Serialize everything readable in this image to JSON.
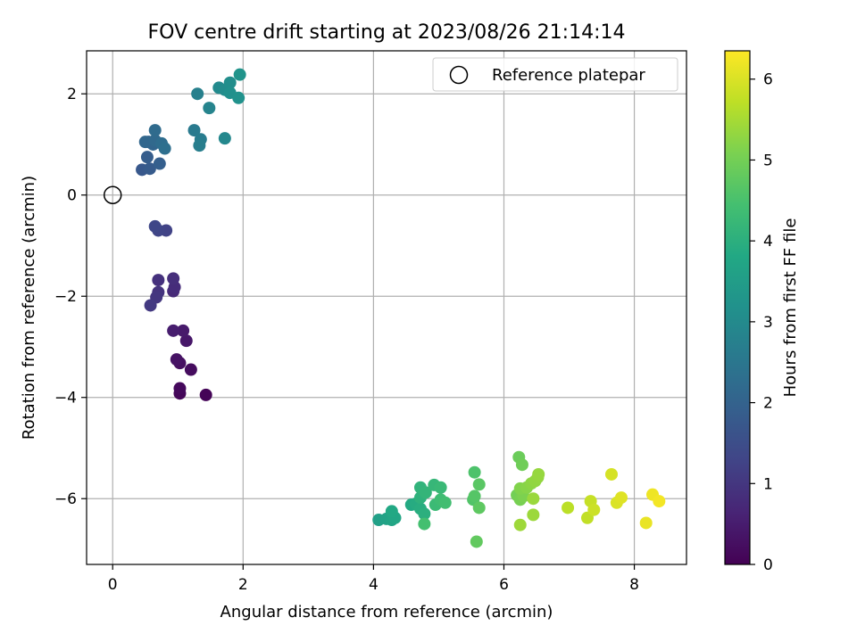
{
  "chart_data": {
    "type": "scatter",
    "title": "FOV centre drift starting at 2023/08/26 21:14:14",
    "xlabel": "Angular distance from reference (arcmin)",
    "ylabel": "Rotation from reference (arcmin)",
    "xlim": [
      -0.4,
      8.8
    ],
    "ylim": [
      -7.3,
      2.85
    ],
    "xticks": [
      0,
      2,
      4,
      6,
      8
    ],
    "xtick_labels": [
      "0",
      "2",
      "4",
      "6",
      "8"
    ],
    "yticks": [
      2,
      0,
      -2,
      -4,
      -6
    ],
    "ytick_labels": [
      "2",
      "0",
      "−2",
      "−4",
      "−6"
    ],
    "grid": true,
    "legend": {
      "position": "top-right",
      "entries": [
        {
          "label": "Reference platepar",
          "marker": "open-circle"
        }
      ]
    },
    "reference_point": {
      "x": 0,
      "y": 0
    },
    "colorbar": {
      "label": "Hours from first FF file",
      "colormap": "viridis",
      "range": [
        0,
        6.35
      ],
      "ticks": [
        0,
        1,
        2,
        3,
        4,
        5,
        6
      ],
      "tick_labels": [
        "0",
        "1",
        "2",
        "3",
        "4",
        "5",
        "6"
      ]
    },
    "points": [
      {
        "x": 1.43,
        "y": -3.95,
        "c": 0.05
      },
      {
        "x": 1.03,
        "y": -3.92,
        "c": 0.1
      },
      {
        "x": 1.03,
        "y": -3.82,
        "c": 0.15
      },
      {
        "x": 1.2,
        "y": -3.45,
        "c": 0.2
      },
      {
        "x": 1.03,
        "y": -3.32,
        "c": 0.25
      },
      {
        "x": 0.98,
        "y": -3.25,
        "c": 0.3
      },
      {
        "x": 1.13,
        "y": -2.88,
        "c": 0.4
      },
      {
        "x": 1.08,
        "y": -2.68,
        "c": 0.45
      },
      {
        "x": 0.93,
        "y": -2.68,
        "c": 0.5
      },
      {
        "x": 0.93,
        "y": -1.9,
        "c": 0.75
      },
      {
        "x": 0.95,
        "y": -1.82,
        "c": 0.8
      },
      {
        "x": 0.93,
        "y": -1.65,
        "c": 0.85
      },
      {
        "x": 0.7,
        "y": -1.68,
        "c": 0.9
      },
      {
        "x": 0.7,
        "y": -1.92,
        "c": 0.95
      },
      {
        "x": 0.67,
        "y": -2.02,
        "c": 1.0
      },
      {
        "x": 0.58,
        "y": -2.18,
        "c": 1.05
      },
      {
        "x": 0.82,
        "y": -0.7,
        "c": 1.25
      },
      {
        "x": 0.7,
        "y": -0.7,
        "c": 1.3
      },
      {
        "x": 0.65,
        "y": -0.62,
        "c": 1.35
      },
      {
        "x": 0.45,
        "y": 0.5,
        "c": 1.75
      },
      {
        "x": 0.57,
        "y": 0.52,
        "c": 1.8
      },
      {
        "x": 0.53,
        "y": 0.75,
        "c": 1.85
      },
      {
        "x": 0.72,
        "y": 0.62,
        "c": 1.9
      },
      {
        "x": 0.55,
        "y": 1.05,
        "c": 2.0
      },
      {
        "x": 0.62,
        "y": 1.0,
        "c": 2.05
      },
      {
        "x": 0.5,
        "y": 1.05,
        "c": 2.1
      },
      {
        "x": 0.65,
        "y": 1.08,
        "c": 2.15
      },
      {
        "x": 0.65,
        "y": 1.28,
        "c": 2.2
      },
      {
        "x": 0.75,
        "y": 1.02,
        "c": 2.25
      },
      {
        "x": 0.8,
        "y": 0.92,
        "c": 2.3
      },
      {
        "x": 1.25,
        "y": 1.28,
        "c": 2.6
      },
      {
        "x": 1.35,
        "y": 1.1,
        "c": 2.65
      },
      {
        "x": 1.33,
        "y": 0.98,
        "c": 2.7
      },
      {
        "x": 1.3,
        "y": 2.0,
        "c": 2.75
      },
      {
        "x": 1.48,
        "y": 1.72,
        "c": 2.85
      },
      {
        "x": 1.72,
        "y": 1.12,
        "c": 2.95
      },
      {
        "x": 1.63,
        "y": 2.12,
        "c": 3.0
      },
      {
        "x": 1.72,
        "y": 2.08,
        "c": 3.05
      },
      {
        "x": 1.8,
        "y": 2.22,
        "c": 3.1
      },
      {
        "x": 1.8,
        "y": 2.02,
        "c": 3.15
      },
      {
        "x": 1.93,
        "y": 1.92,
        "c": 3.2
      },
      {
        "x": 1.95,
        "y": 2.38,
        "c": 3.25
      },
      {
        "x": 4.08,
        "y": -6.42,
        "c": 3.6
      },
      {
        "x": 4.2,
        "y": -6.4,
        "c": 3.65
      },
      {
        "x": 4.28,
        "y": -6.42,
        "c": 3.7
      },
      {
        "x": 4.33,
        "y": -6.38,
        "c": 3.75
      },
      {
        "x": 4.28,
        "y": -6.25,
        "c": 3.8
      },
      {
        "x": 4.58,
        "y": -6.12,
        "c": 3.85
      },
      {
        "x": 4.65,
        "y": -6.1,
        "c": 3.9
      },
      {
        "x": 4.72,
        "y": -6.2,
        "c": 3.95
      },
      {
        "x": 4.78,
        "y": -6.3,
        "c": 4.0
      },
      {
        "x": 4.72,
        "y": -5.98,
        "c": 4.05
      },
      {
        "x": 4.72,
        "y": -5.78,
        "c": 4.1
      },
      {
        "x": 4.8,
        "y": -5.88,
        "c": 4.15
      },
      {
        "x": 4.93,
        "y": -5.73,
        "c": 4.2
      },
      {
        "x": 5.03,
        "y": -5.78,
        "c": 4.25
      },
      {
        "x": 4.95,
        "y": -6.12,
        "c": 4.3
      },
      {
        "x": 5.03,
        "y": -6.02,
        "c": 4.35
      },
      {
        "x": 5.1,
        "y": -6.08,
        "c": 4.4
      },
      {
        "x": 4.78,
        "y": -6.5,
        "c": 4.45
      },
      {
        "x": 5.55,
        "y": -5.48,
        "c": 4.55
      },
      {
        "x": 5.53,
        "y": -6.02,
        "c": 4.6
      },
      {
        "x": 5.55,
        "y": -5.95,
        "c": 4.65
      },
      {
        "x": 5.62,
        "y": -5.72,
        "c": 4.7
      },
      {
        "x": 5.62,
        "y": -6.18,
        "c": 4.75
      },
      {
        "x": 5.58,
        "y": -6.85,
        "c": 4.8
      },
      {
        "x": 6.23,
        "y": -5.18,
        "c": 4.9
      },
      {
        "x": 6.28,
        "y": -5.33,
        "c": 4.95
      },
      {
        "x": 6.2,
        "y": -5.93,
        "c": 5.0
      },
      {
        "x": 6.25,
        "y": -6.02,
        "c": 5.05
      },
      {
        "x": 6.3,
        "y": -5.95,
        "c": 5.1
      },
      {
        "x": 6.25,
        "y": -5.8,
        "c": 5.15
      },
      {
        "x": 6.35,
        "y": -5.78,
        "c": 5.2
      },
      {
        "x": 6.42,
        "y": -5.7,
        "c": 5.25
      },
      {
        "x": 6.48,
        "y": -5.65,
        "c": 5.3
      },
      {
        "x": 6.52,
        "y": -5.58,
        "c": 5.32
      },
      {
        "x": 6.53,
        "y": -5.52,
        "c": 5.35
      },
      {
        "x": 6.45,
        "y": -6.0,
        "c": 5.38
      },
      {
        "x": 6.45,
        "y": -6.32,
        "c": 5.4
      },
      {
        "x": 6.25,
        "y": -6.52,
        "c": 5.42
      },
      {
        "x": 6.98,
        "y": -6.18,
        "c": 5.7
      },
      {
        "x": 7.28,
        "y": -6.38,
        "c": 5.75
      },
      {
        "x": 7.33,
        "y": -6.05,
        "c": 5.8
      },
      {
        "x": 7.38,
        "y": -6.22,
        "c": 5.85
      },
      {
        "x": 7.65,
        "y": -5.52,
        "c": 5.95
      },
      {
        "x": 7.73,
        "y": -6.08,
        "c": 6.0
      },
      {
        "x": 7.8,
        "y": -5.98,
        "c": 6.05
      },
      {
        "x": 8.18,
        "y": -6.48,
        "c": 6.15
      },
      {
        "x": 8.28,
        "y": -5.92,
        "c": 6.2
      },
      {
        "x": 8.38,
        "y": -6.05,
        "c": 6.25
      }
    ]
  }
}
